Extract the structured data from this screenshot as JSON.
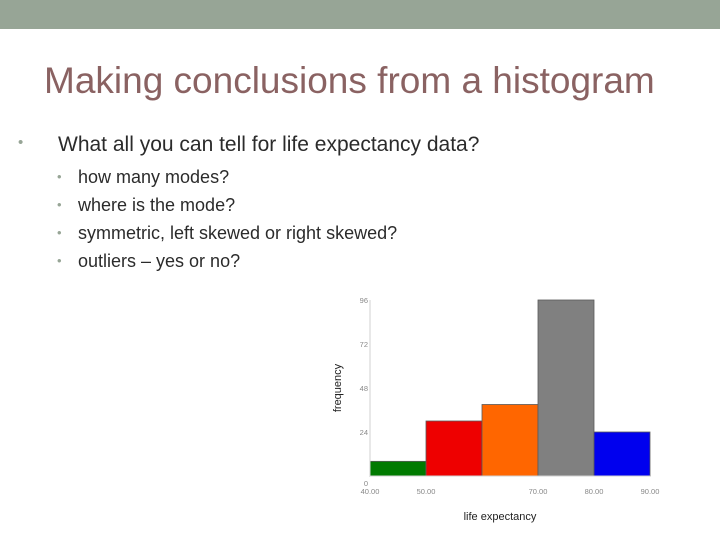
{
  "slide": {
    "title": "Making conclusions from a histogram",
    "question": "What all you can tell for life expectancy data?",
    "sub_questions": [
      "how many modes?",
      "where is the mode?",
      "symmetric, left skewed or right skewed?",
      "outliers – yes or no?"
    ]
  },
  "colors": {
    "top_bar": "#97a596",
    "title": "#8a6262",
    "bullet": "#97a596"
  },
  "chart_data": {
    "type": "bar",
    "xlabel": "life expectancy",
    "ylabel": "frequency",
    "x_ticks": [
      "40.00",
      "50.00",
      "70.00",
      "80.00",
      "90.00"
    ],
    "y_ticks": [
      "0",
      "24",
      "48",
      "72",
      "96"
    ],
    "ylim": [
      0,
      96
    ],
    "xlim": [
      40,
      90
    ],
    "bins": [
      {
        "start": 40,
        "end": 50,
        "value": 8,
        "color": "#007a00"
      },
      {
        "start": 50,
        "end": 60,
        "value": 30,
        "color": "#ee0000"
      },
      {
        "start": 60,
        "end": 70,
        "value": 39,
        "color": "#ff6600"
      },
      {
        "start": 70,
        "end": 80,
        "value": 96,
        "color": "#808080"
      },
      {
        "start": 80,
        "end": 90,
        "value": 24,
        "color": "#0000ee"
      }
    ],
    "grid": false
  }
}
